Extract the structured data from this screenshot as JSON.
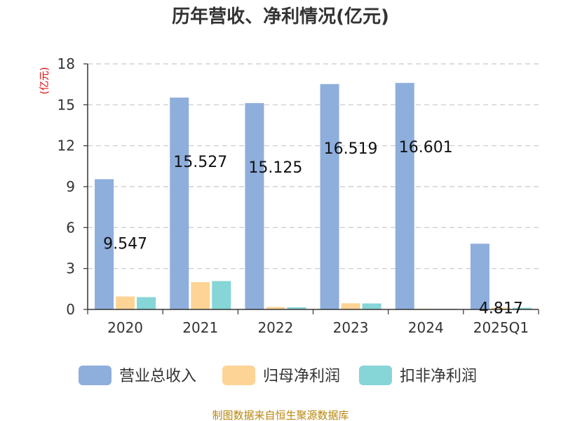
{
  "chart_data": {
    "type": "bar",
    "title": "历年营收、净利情况(亿元)",
    "ylabel": "(亿元)",
    "xlabel": "",
    "categories": [
      "2020",
      "2021",
      "2022",
      "2023",
      "2024",
      "2025Q1"
    ],
    "ylim": [
      0,
      18
    ],
    "yticks": [
      0,
      3,
      6,
      9,
      12,
      15,
      18
    ],
    "grid": true,
    "legend_position": "bottom",
    "series": [
      {
        "name": "营业总收入",
        "color": "#8eaedc",
        "values": [
          9.547,
          15.527,
          15.125,
          16.519,
          16.601,
          4.817
        ],
        "labels": [
          "9.547",
          "15.527",
          "15.125",
          "16.519",
          "16.601",
          "4.817"
        ]
      },
      {
        "name": "归母净利润",
        "color": "#fdd495",
        "values": [
          0.95,
          2.0,
          0.18,
          0.45,
          0.05,
          0.13
        ]
      },
      {
        "name": "扣非净利润",
        "color": "#86d5d7",
        "values": [
          0.9,
          2.08,
          0.16,
          0.44,
          0.04,
          0.12
        ]
      }
    ]
  },
  "footer": {
    "source": "制图数据来自恒生聚源数据库"
  }
}
